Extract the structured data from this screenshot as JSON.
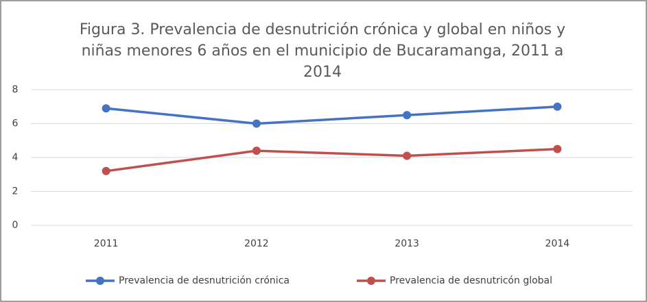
{
  "chart_data": {
    "type": "line",
    "title": "Figura 3. Prevalencia de desnutrición crónica y global en niños y niñas menores 6 años en el municipio de Bucaramanga, 2011 a 2014",
    "categories": [
      "2011",
      "2012",
      "2013",
      "2014"
    ],
    "series": [
      {
        "name": "Prevalencia de desnutrición crónica",
        "color": "#4472c4",
        "values": [
          6.9,
          6.0,
          6.5,
          7.0
        ]
      },
      {
        "name": "Prevalencia de desnutricón global",
        "color": "#c0504d",
        "values": [
          3.2,
          4.4,
          4.1,
          4.5
        ]
      }
    ],
    "ylim": [
      0,
      8
    ],
    "yticks": [
      0,
      2,
      4,
      6,
      8
    ],
    "grid": true,
    "legend": "bottom"
  }
}
